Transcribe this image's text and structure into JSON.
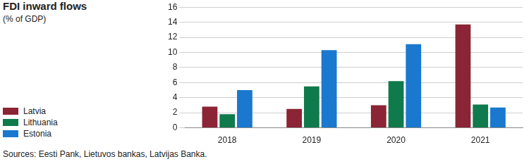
{
  "chart_data": {
    "type": "bar",
    "title": "FDI inward flows",
    "subtitle": "(% of GDP)",
    "source": "Sources: Eesti Pank, Lietuvos bankas, Latvijas Banka.",
    "categories": [
      "2018",
      "2019",
      "2020",
      "2021"
    ],
    "series": [
      {
        "name": "Latvia",
        "color": "#8b2434",
        "values": [
          2.8,
          2.5,
          3.0,
          13.7
        ]
      },
      {
        "name": "Lithuania",
        "color": "#0f7a4c",
        "values": [
          1.8,
          5.5,
          6.2,
          3.1
        ]
      },
      {
        "name": "Estonia",
        "color": "#1a78cf",
        "values": [
          5.0,
          10.3,
          11.1,
          2.7
        ]
      }
    ],
    "ylim": [
      0,
      16
    ],
    "yticks": [
      0,
      2,
      4,
      6,
      8,
      10,
      12,
      14,
      16
    ],
    "grid": true,
    "legend": "left"
  }
}
